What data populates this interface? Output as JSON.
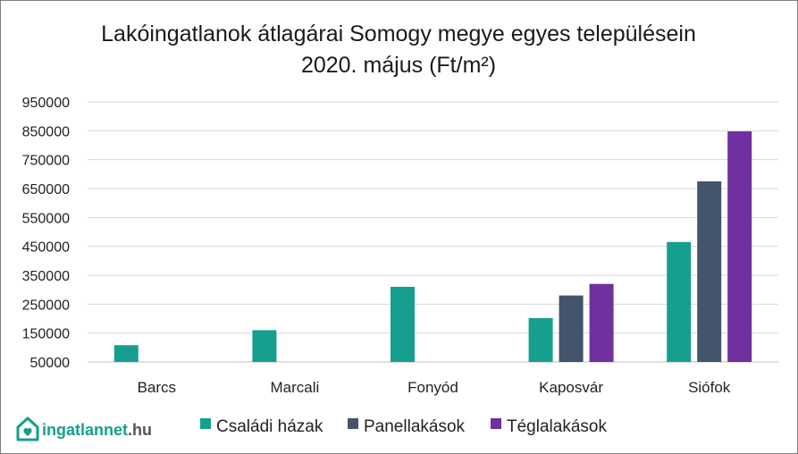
{
  "chart_data": {
    "type": "bar",
    "title_line1": "Lakóingatlanok átlagárai Somogy megye egyes településein",
    "title_line2": "2020. május (Ft/m²)",
    "xlabel": "",
    "ylabel": "",
    "ylim": [
      50000,
      950000
    ],
    "yticks": [
      "950000",
      "850000",
      "750000",
      "650000",
      "550000",
      "450000",
      "350000",
      "250000",
      "150000",
      "50000"
    ],
    "ytick_values": [
      950000,
      850000,
      750000,
      650000,
      550000,
      450000,
      350000,
      250000,
      150000,
      50000
    ],
    "categories": [
      "Barcs",
      "Marcali",
      "Fonyód",
      "Kaposvár",
      "Siófok"
    ],
    "series": [
      {
        "name": "Családi házak",
        "color": "#169e8e",
        "values": [
          108000,
          160000,
          310000,
          202000,
          465000
        ]
      },
      {
        "name": "Panellakások",
        "color": "#44546a",
        "values": [
          null,
          null,
          null,
          280000,
          675000
        ]
      },
      {
        "name": "Téglalakások",
        "color": "#7030a0",
        "values": [
          null,
          null,
          null,
          320000,
          848000
        ]
      }
    ],
    "grid": true,
    "legend_position": "bottom"
  },
  "logo": {
    "text_main": "ingatlannet",
    "text_suffix": ".hu",
    "icon": "house-heart-icon",
    "color": "#169e8e"
  }
}
